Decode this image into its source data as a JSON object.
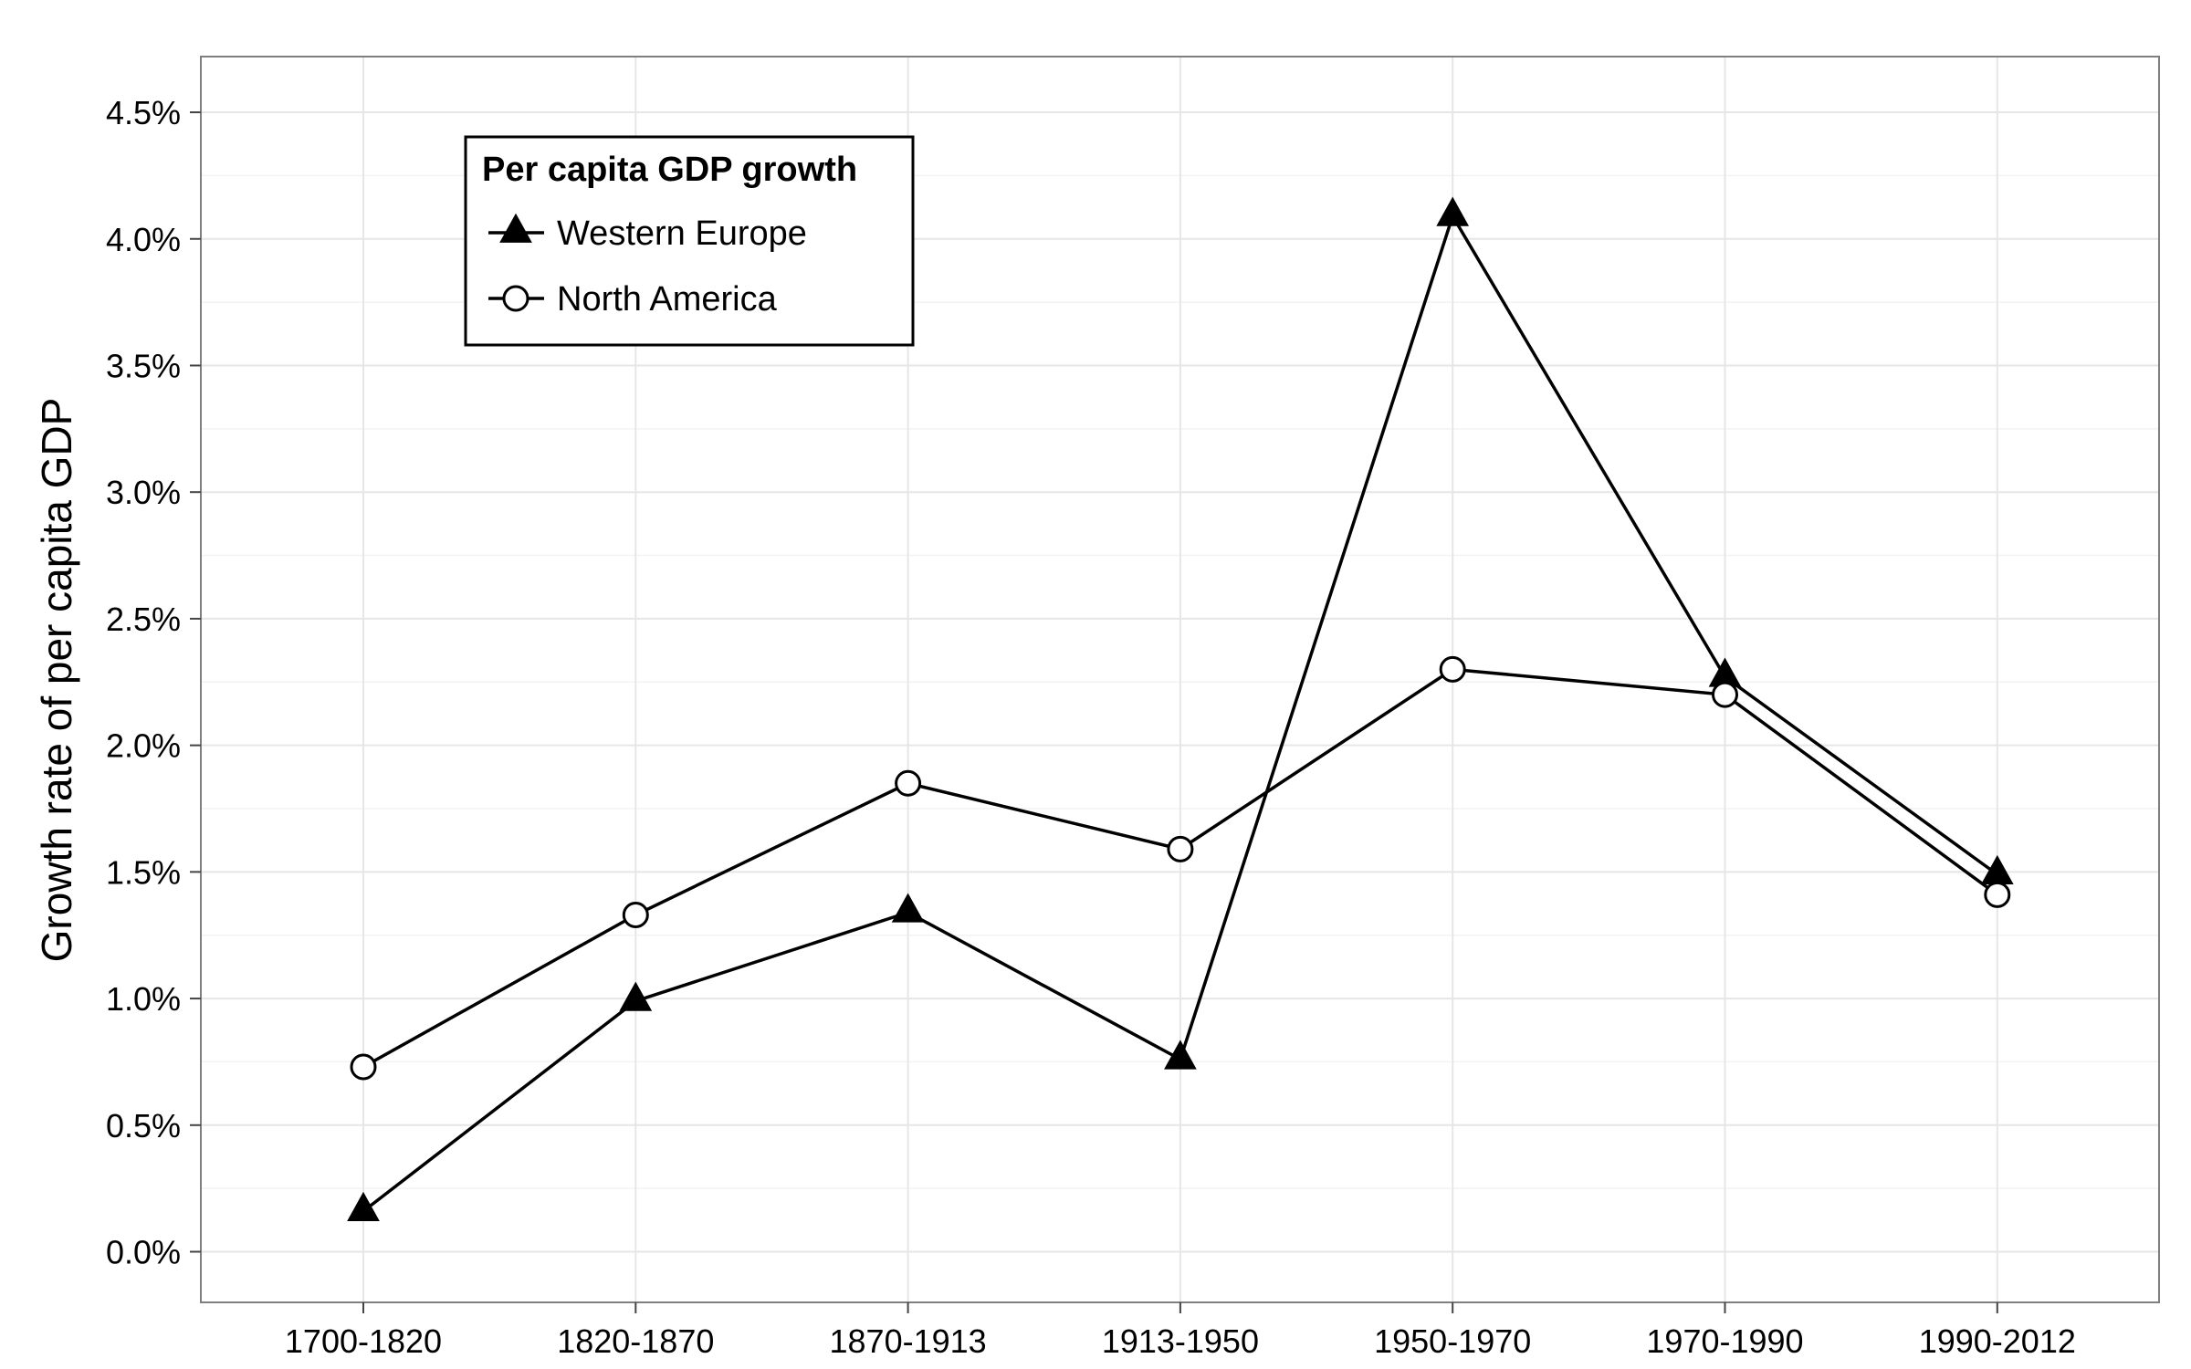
{
  "chart_data": {
    "type": "line",
    "title": "",
    "xlabel": "",
    "ylabel": "Growth rate of per capita GDP",
    "categories": [
      "1700-1820",
      "1820-1870",
      "1870-1913",
      "1913-1950",
      "1950-1970",
      "1970-1990",
      "1990-2012"
    ],
    "ylim": [
      -0.2,
      4.72
    ],
    "yticks": [
      0.0,
      0.5,
      1.0,
      1.5,
      2.0,
      2.5,
      3.0,
      3.5,
      4.0,
      4.5
    ],
    "ytick_labels": [
      "0.0%",
      "0.5%",
      "1.0%",
      "1.5%",
      "2.0%",
      "2.5%",
      "3.0%",
      "3.5%",
      "4.0%",
      "4.5%"
    ],
    "grid": true,
    "legend": {
      "title": "Per capita GDP growth",
      "position": "top-left"
    },
    "series": [
      {
        "name": "Western Europe",
        "marker": "filled-triangle",
        "values": [
          0.16,
          0.99,
          1.34,
          0.76,
          4.09,
          2.27,
          1.49
        ]
      },
      {
        "name": "North America",
        "marker": "open-circle",
        "values": [
          0.73,
          1.33,
          1.85,
          1.59,
          2.3,
          2.2,
          1.41
        ]
      }
    ],
    "colors": {
      "line": "#000000",
      "grid": "#e6e6e6",
      "panel_border": "#7f7f7f"
    }
  }
}
